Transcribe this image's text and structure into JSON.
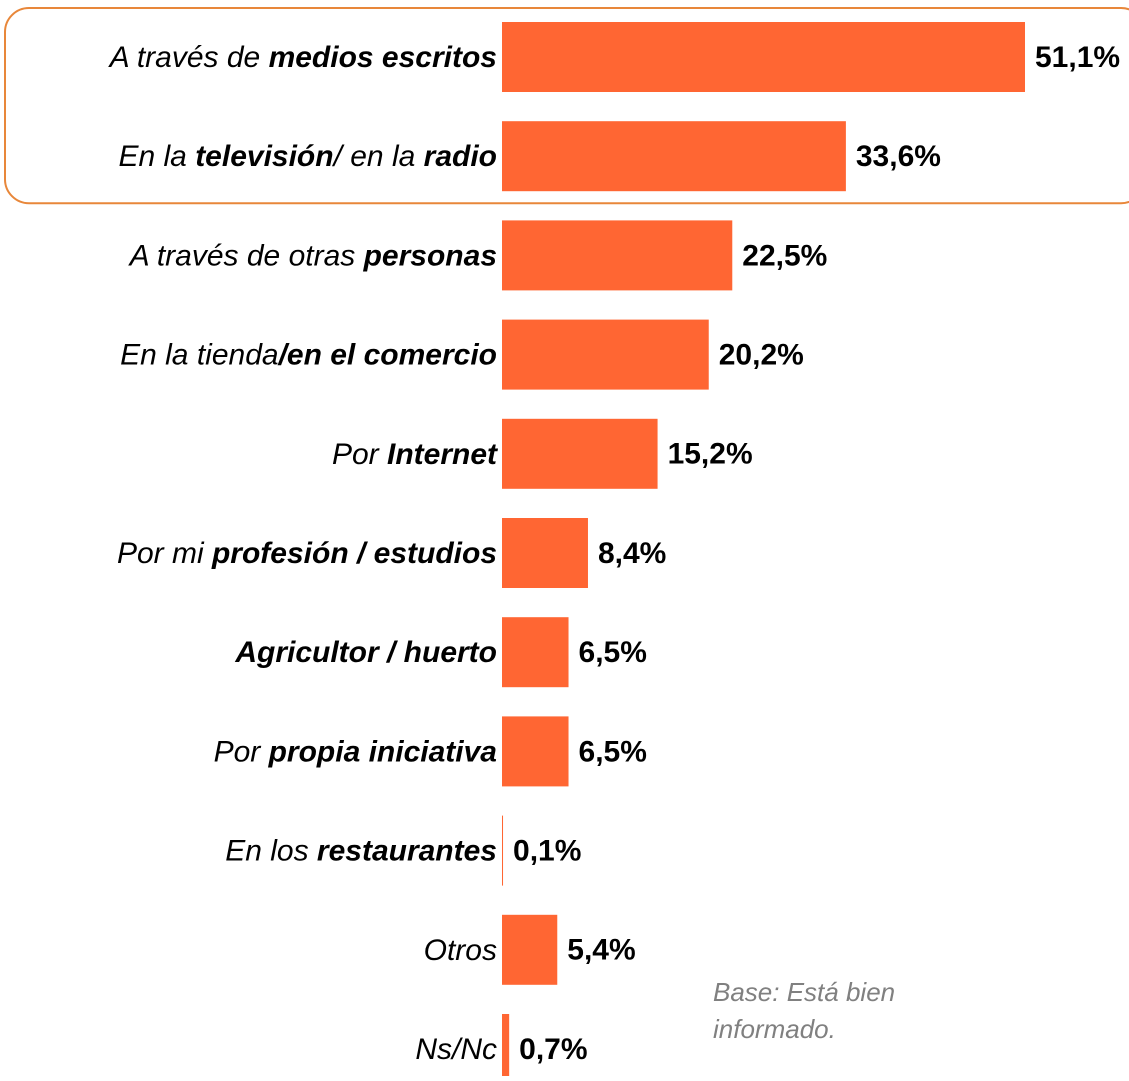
{
  "chart_data": {
    "type": "hbar",
    "categories": [
      [
        {
          "text": "A través de ",
          "bold": false
        },
        {
          "text": "medios escritos",
          "bold": true
        }
      ],
      [
        {
          "text": "En la ",
          "bold": false
        },
        {
          "text": "televisión",
          "bold": true
        },
        {
          "text": "/ en la ",
          "bold": false
        },
        {
          "text": "radio",
          "bold": true
        }
      ],
      [
        {
          "text": "A través de otras ",
          "bold": false
        },
        {
          "text": "personas",
          "bold": true
        }
      ],
      [
        {
          "text": "En la tienda",
          "bold": false
        },
        {
          "text": "/en el comercio",
          "bold": true
        }
      ],
      [
        {
          "text": "Por ",
          "bold": false
        },
        {
          "text": "Internet",
          "bold": true
        }
      ],
      [
        {
          "text": "Por mi ",
          "bold": false
        },
        {
          "text": "profesión / estudios",
          "bold": true
        }
      ],
      [
        {
          "text": "Agricultor / huerto",
          "bold": true
        }
      ],
      [
        {
          "text": "Por ",
          "bold": false
        },
        {
          "text": "propia iniciativa",
          "bold": true
        }
      ],
      [
        {
          "text": "En los ",
          "bold": false
        },
        {
          "text": "restaurantes",
          "bold": true
        }
      ],
      [
        {
          "text": "Otros",
          "bold": false
        }
      ],
      [
        {
          "text": "Ns/Nc",
          "bold": false
        }
      ]
    ],
    "values": [
      51.1,
      33.6,
      22.5,
      20.2,
      15.2,
      8.4,
      6.5,
      6.5,
      0.1,
      5.4,
      0.7
    ],
    "value_labels": [
      "51,1%",
      "33,6%",
      "22,5%",
      "20,2%",
      "15,2%",
      "8,4%",
      "6,5%",
      "6,5%",
      "0,1%",
      "5,4%",
      "0,7%"
    ],
    "color": "#ff6633",
    "highlight_box_color": "#e8873a",
    "highlighted": [
      0,
      1
    ],
    "note": [
      "Base: Está bien",
      "informado."
    ]
  }
}
